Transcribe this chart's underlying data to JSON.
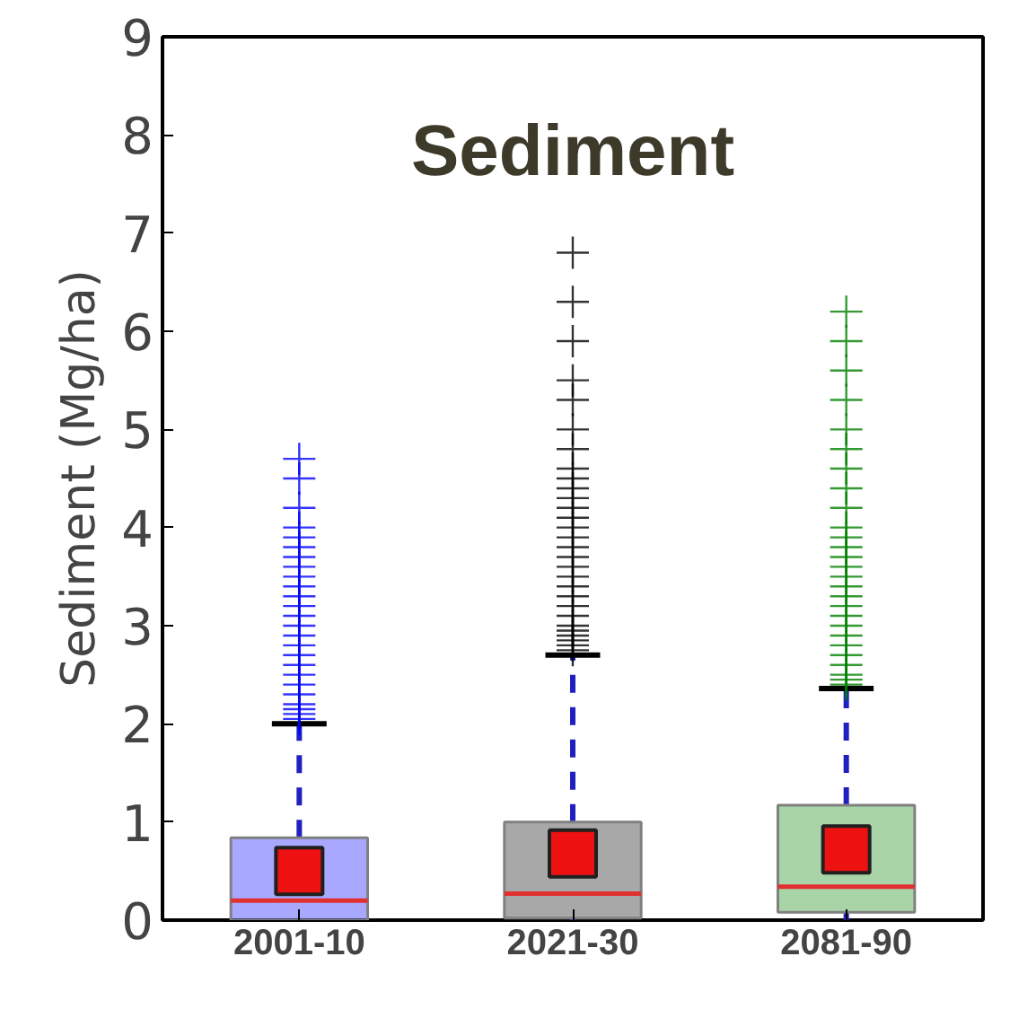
{
  "chart_data": {
    "type": "box",
    "title": "Sediment",
    "ylabel": "Sediment (Mg/ha)",
    "categories": [
      "2001-10",
      "2021-30",
      "2081-90"
    ],
    "colors": [
      "#0000ff",
      "#000000",
      "#008000"
    ],
    "boxes": [
      {
        "low": 0,
        "q1": 0,
        "median": 0.2,
        "q3": 0.84,
        "high": 2.0,
        "mean": 0.5,
        "outliers": [
          2.05,
          2.1,
          2.15,
          2.2,
          2.3,
          2.4,
          2.5,
          2.6,
          2.7,
          2.8,
          2.9,
          3.0,
          3.1,
          3.2,
          3.3,
          3.4,
          3.5,
          3.6,
          3.7,
          3.8,
          3.9,
          4.0,
          4.2,
          4.5,
          4.7
        ]
      },
      {
        "low": 0,
        "q1": 0.02,
        "median": 0.27,
        "q3": 1.0,
        "high": 2.7,
        "mean": 0.68,
        "outliers": [
          2.75,
          2.8,
          2.85,
          2.9,
          2.95,
          3.0,
          3.1,
          3.2,
          3.3,
          3.4,
          3.5,
          3.6,
          3.7,
          3.8,
          3.9,
          4.0,
          4.1,
          4.2,
          4.3,
          4.4,
          4.5,
          4.6,
          4.8,
          5.0,
          5.3,
          5.5,
          5.9,
          6.3,
          6.8
        ]
      },
      {
        "low": 0,
        "q1": 0.08,
        "median": 0.34,
        "q3": 1.17,
        "high": 2.36,
        "mean": 0.72,
        "outliers": [
          2.4,
          2.45,
          2.5,
          2.6,
          2.7,
          2.8,
          2.9,
          3.0,
          3.1,
          3.2,
          3.3,
          3.4,
          3.5,
          3.6,
          3.7,
          3.8,
          3.9,
          4.0,
          4.2,
          4.4,
          4.6,
          4.8,
          5.0,
          5.3,
          5.6,
          5.9,
          6.2
        ]
      }
    ],
    "marker": "cross",
    "ylim": [
      0,
      9
    ],
    "yticks": [
      0,
      1,
      2,
      3,
      4,
      5,
      6,
      7,
      8,
      9
    ],
    "grid": false
  }
}
